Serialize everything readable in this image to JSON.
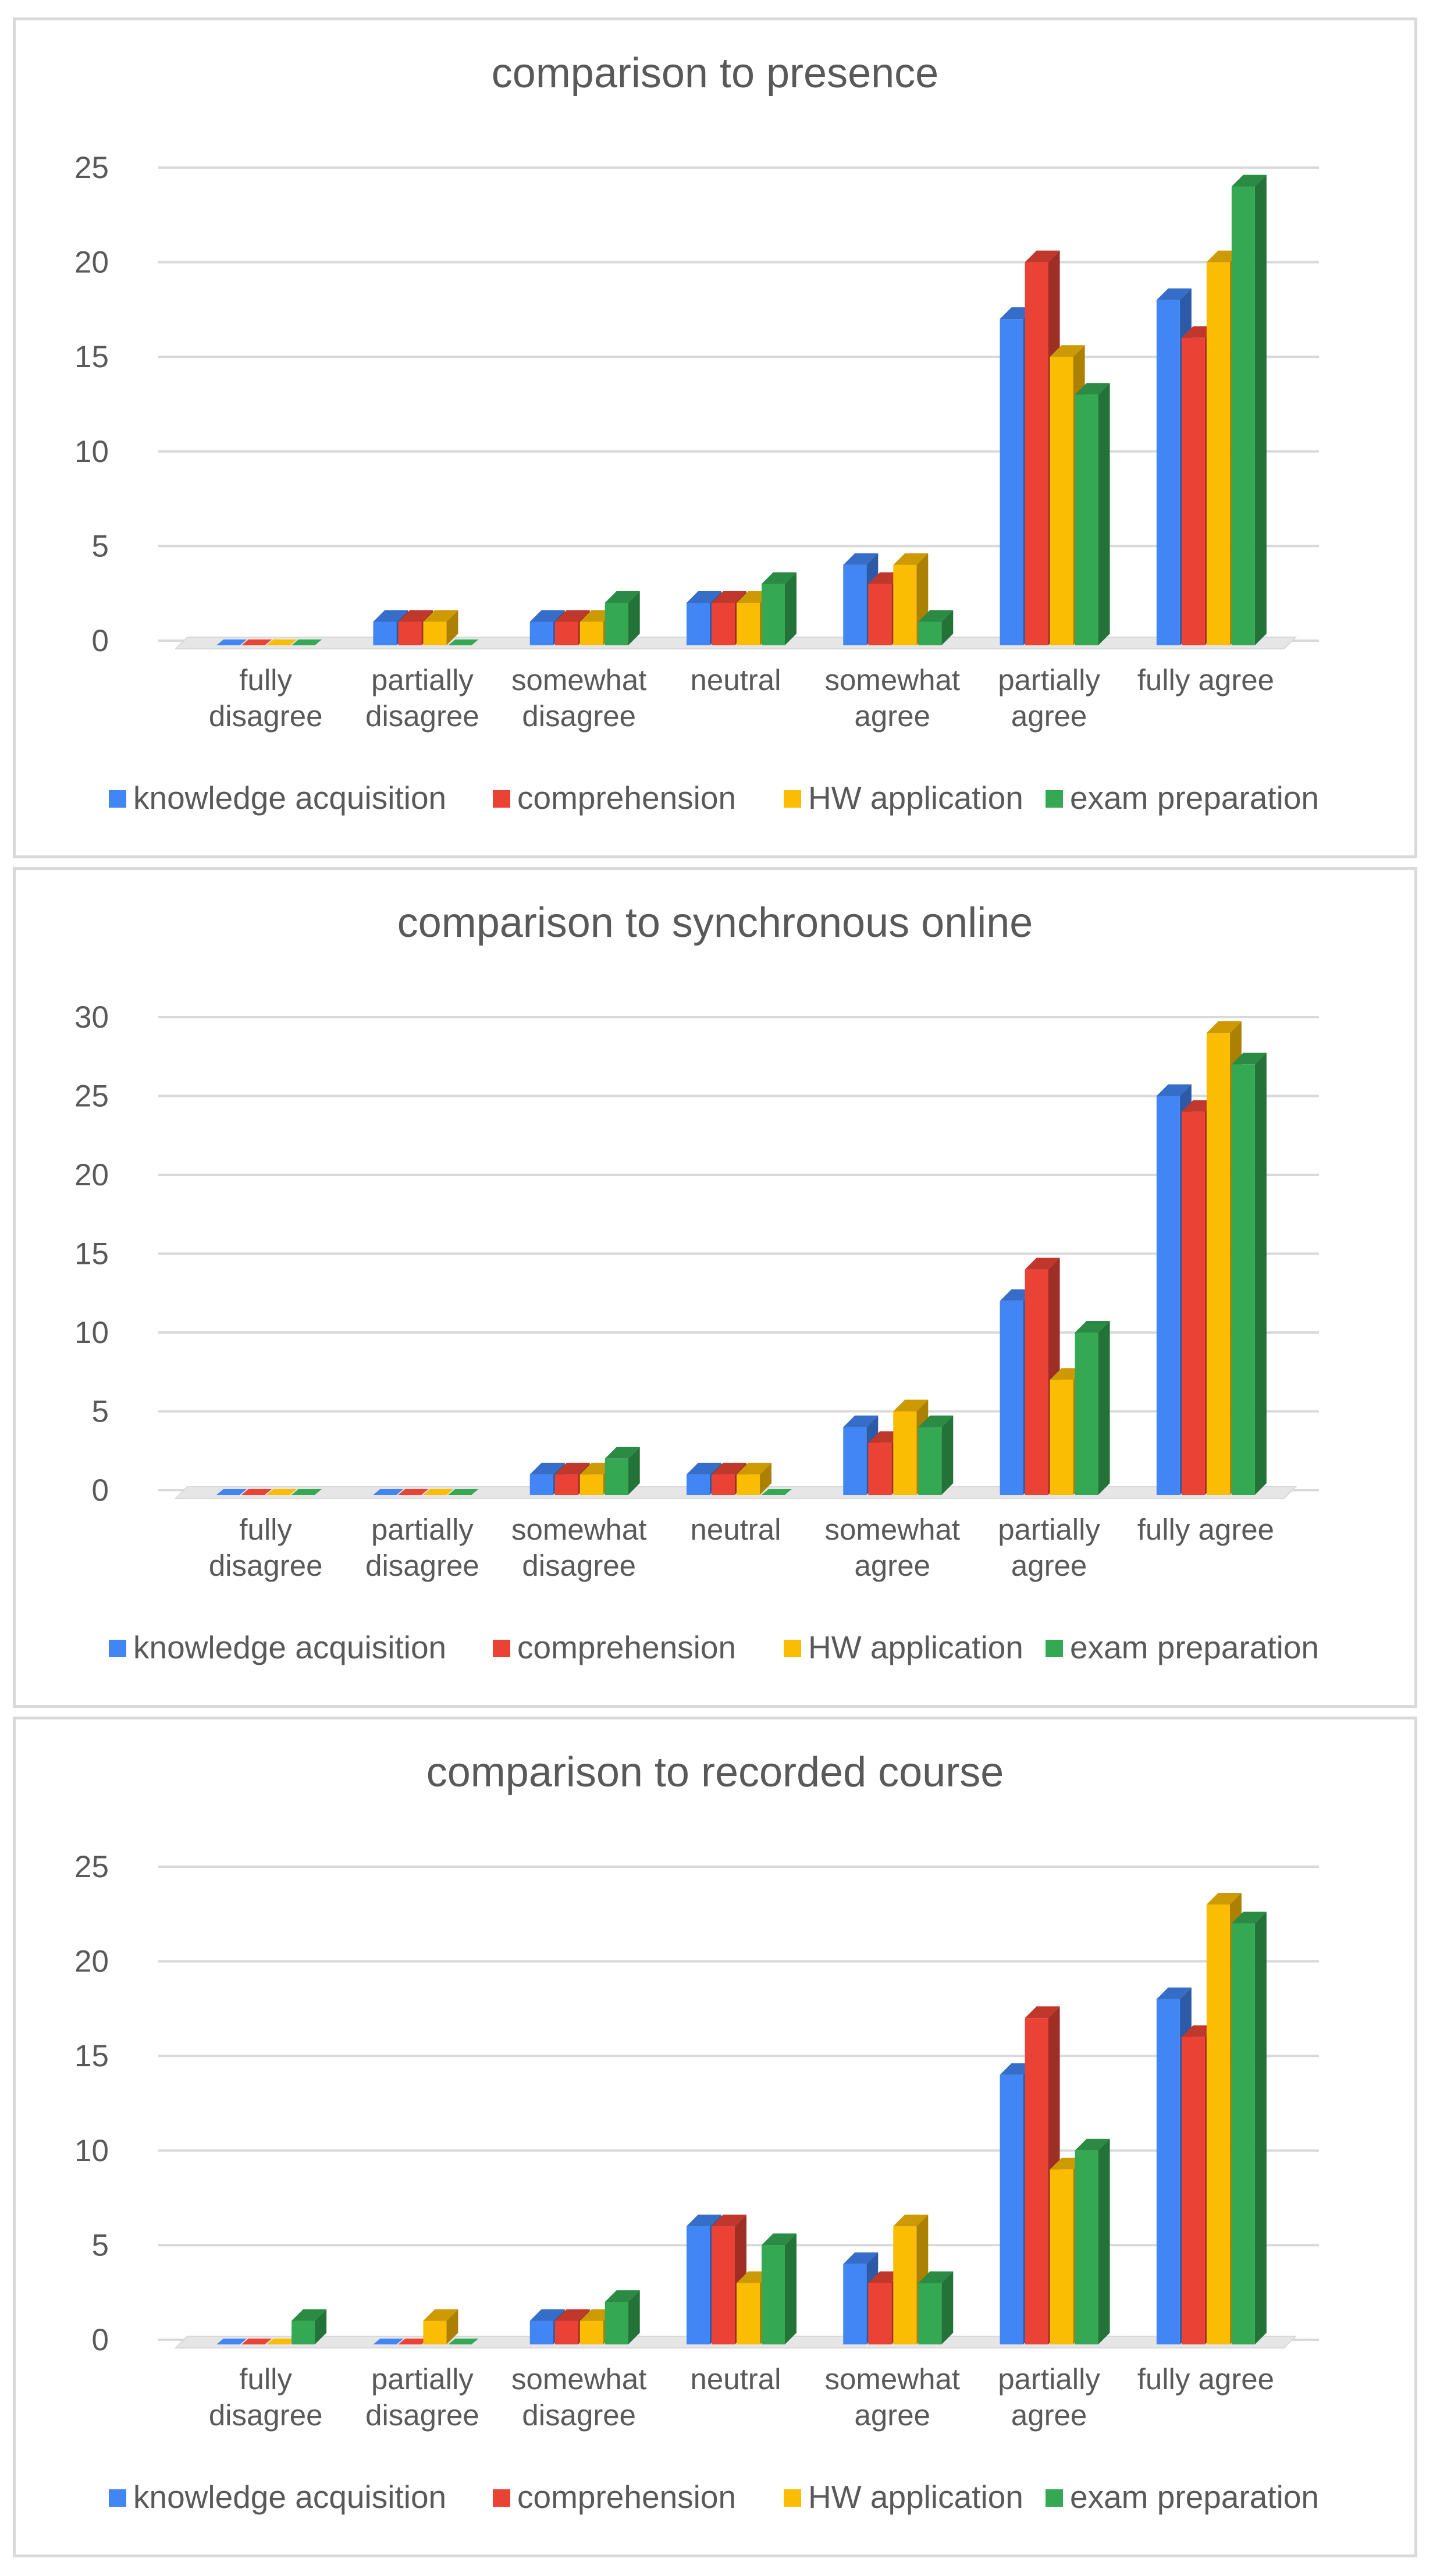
{
  "colors": {
    "knowledge_acquisition": "#4285f4",
    "comprehension": "#ea4335",
    "hw_application": "#fbbc04",
    "exam_preparation": "#34a853",
    "gridline": "#d9d9d9",
    "text": "#595959"
  },
  "chart_data": [
    {
      "type": "bar",
      "title": "comparison to presence",
      "categories": [
        [
          "fully",
          "disagree"
        ],
        [
          "partially",
          "disagree"
        ],
        [
          "somewhat",
          "disagree"
        ],
        [
          "neutral"
        ],
        [
          "somewhat",
          "agree"
        ],
        [
          "partially",
          "agree"
        ],
        [
          "fully agree"
        ]
      ],
      "ylim": [
        0,
        25
      ],
      "yticks": [
        "0",
        "5",
        "10",
        "15",
        "20",
        "25"
      ],
      "grid": true,
      "legend": "bottom",
      "series": [
        {
          "name": "knowledge acquisition",
          "key": "knowledge_acquisition",
          "values": [
            0,
            1,
            1,
            2,
            4,
            17,
            18
          ]
        },
        {
          "name": "comprehension",
          "key": "comprehension",
          "values": [
            0,
            1,
            1,
            2,
            3,
            20,
            16
          ]
        },
        {
          "name": "HW application",
          "key": "hw_application",
          "values": [
            0,
            1,
            1,
            2,
            4,
            15,
            20
          ]
        },
        {
          "name": "exam preparation",
          "key": "exam_preparation",
          "values": [
            0,
            0,
            2,
            3,
            1,
            13,
            24
          ]
        }
      ]
    },
    {
      "type": "bar",
      "title": "comparison to synchronous online",
      "categories": [
        [
          "fully",
          "disagree"
        ],
        [
          "partially",
          "disagree"
        ],
        [
          "somewhat",
          "disagree"
        ],
        [
          "neutral"
        ],
        [
          "somewhat",
          "agree"
        ],
        [
          "partially",
          "agree"
        ],
        [
          "fully agree"
        ]
      ],
      "ylim": [
        0,
        30
      ],
      "yticks": [
        "0",
        "5",
        "10",
        "15",
        "20",
        "25",
        "30"
      ],
      "grid": true,
      "legend": "bottom",
      "series": [
        {
          "name": "knowledge acquisition",
          "key": "knowledge_acquisition",
          "values": [
            0,
            0,
            1,
            1,
            4,
            12,
            25
          ]
        },
        {
          "name": "comprehension",
          "key": "comprehension",
          "values": [
            0,
            0,
            1,
            1,
            3,
            14,
            24
          ]
        },
        {
          "name": "HW application",
          "key": "hw_application",
          "values": [
            0,
            0,
            1,
            1,
            5,
            7,
            29
          ]
        },
        {
          "name": "exam preparation",
          "key": "exam_preparation",
          "values": [
            0,
            0,
            2,
            0,
            4,
            10,
            27
          ]
        }
      ]
    },
    {
      "type": "bar",
      "title": "comparison to recorded course",
      "categories": [
        [
          "fully",
          "disagree"
        ],
        [
          "partially",
          "disagree"
        ],
        [
          "somewhat",
          "disagree"
        ],
        [
          "neutral"
        ],
        [
          "somewhat",
          "agree"
        ],
        [
          "partially",
          "agree"
        ],
        [
          "fully agree"
        ]
      ],
      "ylim": [
        0,
        25
      ],
      "yticks": [
        "0",
        "5",
        "10",
        "15",
        "20",
        "25"
      ],
      "grid": true,
      "legend": "bottom",
      "series": [
        {
          "name": "knowledge acquisition",
          "key": "knowledge_acquisition",
          "values": [
            0,
            0,
            1,
            6,
            4,
            14,
            18
          ]
        },
        {
          "name": "comprehension",
          "key": "comprehension",
          "values": [
            0,
            0,
            1,
            6,
            3,
            17,
            16
          ]
        },
        {
          "name": "HW application",
          "key": "hw_application",
          "values": [
            0,
            1,
            1,
            3,
            6,
            9,
            23
          ]
        },
        {
          "name": "exam preparation",
          "key": "exam_preparation",
          "values": [
            1,
            0,
            2,
            5,
            3,
            10,
            22
          ]
        }
      ]
    }
  ]
}
